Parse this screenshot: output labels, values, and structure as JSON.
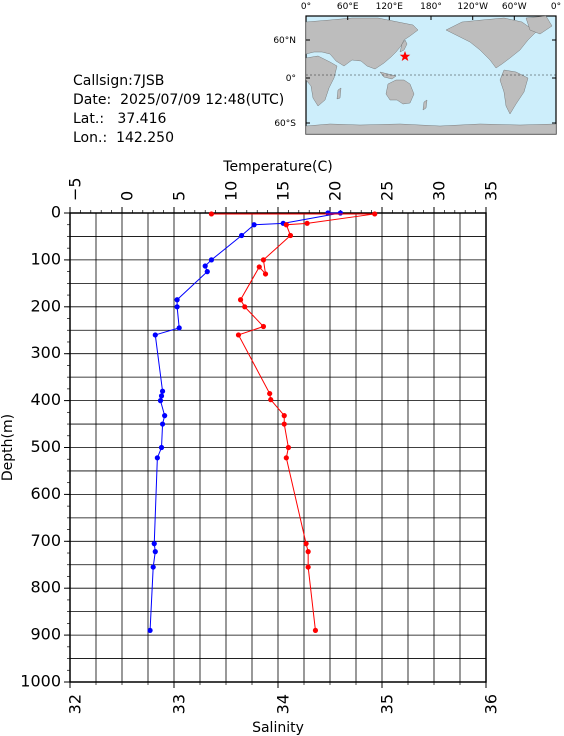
{
  "station": {
    "callsign_label": "Callsign:",
    "callsign": "7JSB",
    "date_label": "Date:",
    "date": "2025/07/09 12:48(UTC)",
    "lat_label": "Lat.:",
    "lat": "37.416",
    "lon_label": "Lon.:",
    "lon": "142.250"
  },
  "map": {
    "lon_ticks": [
      "0°",
      "60°E",
      "120°E",
      "180°",
      "120°W",
      "60°W",
      "0°"
    ],
    "lat_ticks": [
      "60°N",
      "0°",
      "60°S"
    ],
    "ocean_color": "#cdeefb",
    "land_color": "#bdbdbd",
    "marker": "red-star",
    "marker_color": "#ff0000"
  },
  "chart_data": {
    "type": "line",
    "title": "",
    "ylabel": "Depth(m)",
    "ylim": [
      0,
      1000
    ],
    "y_inverted": true,
    "y_ticks": [
      "0",
      "100",
      "200",
      "300",
      "400",
      "500",
      "600",
      "700",
      "800",
      "900",
      "1000"
    ],
    "x_top": {
      "label": "Temperature(C)",
      "range": [
        -5,
        35
      ],
      "ticks": [
        "-5",
        "0",
        "5",
        "10",
        "15",
        "20",
        "25",
        "30",
        "35"
      ]
    },
    "x_bottom": {
      "label": "Salinity",
      "range": [
        32,
        36
      ],
      "ticks": [
        "32",
        "33",
        "34",
        "35",
        "36"
      ]
    },
    "grid": true,
    "series": [
      {
        "color": "#0000ff",
        "axis": "top",
        "x": [
          19.8,
          21.0,
          15.5,
          12.7,
          11.5,
          8.6,
          8.0,
          8.2,
          5.3,
          5.3,
          5.5,
          3.2,
          3.9,
          3.8,
          3.7,
          4.1,
          3.9,
          3.8,
          3.4,
          3.1,
          3.2,
          3.0,
          2.7
        ],
        "y": [
          0,
          0,
          22,
          25,
          48,
          100,
          113,
          125,
          185,
          200,
          245,
          260,
          380,
          390,
          400,
          432,
          450,
          500,
          522,
          705,
          722,
          755,
          890
        ]
      },
      {
        "color": "#ff0000",
        "axis": "bottom",
        "x": [
          33.36,
          34.93,
          34.28,
          34.08,
          34.12,
          33.86,
          33.88,
          33.82,
          33.64,
          33.68,
          33.86,
          33.62,
          33.92,
          33.93,
          34.06,
          34.06,
          34.1,
          34.08,
          34.27,
          34.29,
          34.29,
          34.36
        ],
        "y": [
          2,
          2,
          22,
          25,
          48,
          100,
          130,
          115,
          185,
          200,
          242,
          260,
          385,
          398,
          432,
          450,
          500,
          522,
          705,
          722,
          755,
          890
        ]
      }
    ]
  }
}
